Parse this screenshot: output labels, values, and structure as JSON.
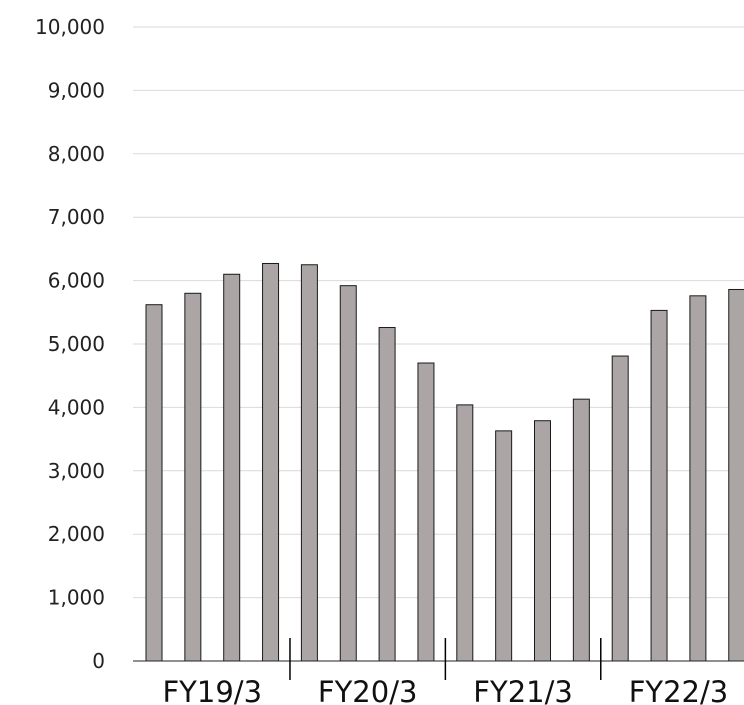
{
  "chart_data": {
    "type": "bar",
    "title": "",
    "xlabel": "",
    "ylabel": "",
    "ylim": [
      0,
      10000
    ],
    "yticks": [
      0,
      1000,
      2000,
      3000,
      4000,
      5000,
      6000,
      7000,
      8000,
      9000,
      10000
    ],
    "ytick_labels": [
      "0",
      "1,000",
      "2,000",
      "3,000",
      "4,000",
      "5,000",
      "6,000",
      "7,000",
      "8,000",
      "9,000",
      "10,000"
    ],
    "grid": true,
    "bar_color": "#aba6a5",
    "group_labels": [
      "FY19/3",
      "FY20/3",
      "FY21/3",
      "FY22/3"
    ],
    "bars_per_group": 4,
    "values": [
      5620,
      5800,
      6100,
      6270,
      6250,
      5920,
      5260,
      4700,
      4040,
      3630,
      3790,
      4130,
      4810,
      5530,
      5760,
      5860
    ]
  }
}
